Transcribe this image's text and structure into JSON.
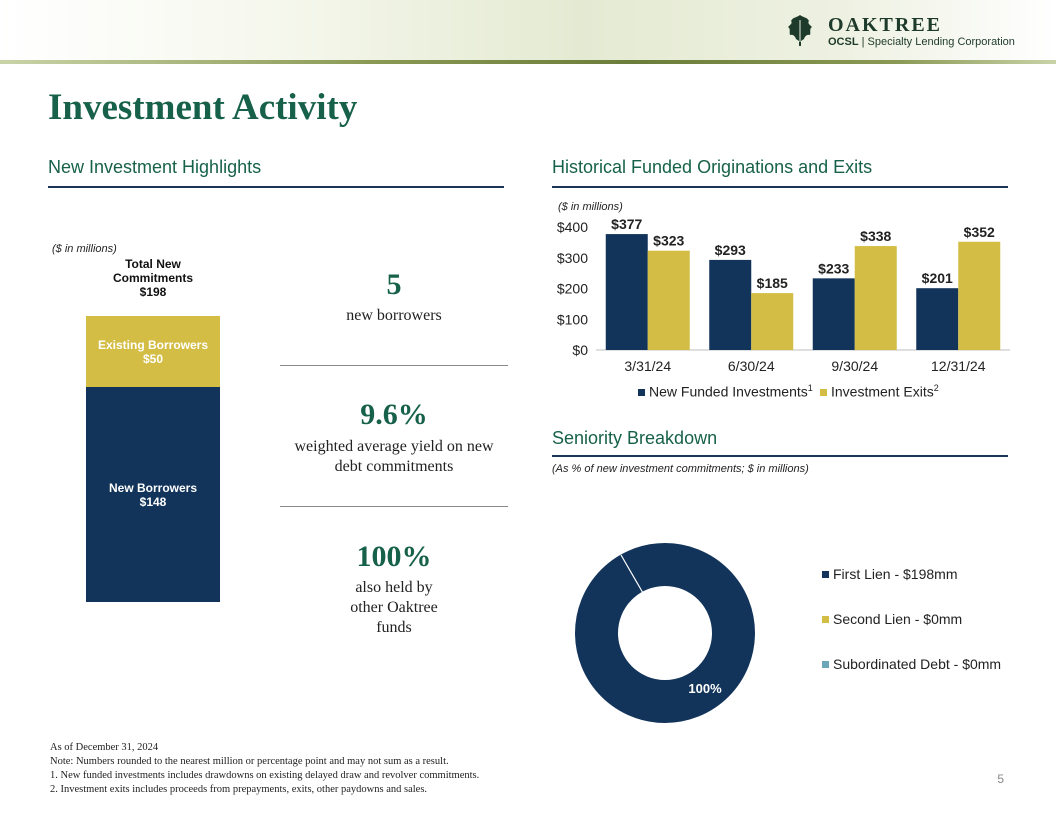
{
  "brand": {
    "name": "OAKTREE",
    "ticker": "OCSL",
    "subtitle": "Specialty Lending Corporation"
  },
  "page_title": "Investment Activity",
  "highlights": {
    "heading": "New Investment Highlights",
    "units_note": "($ in millions)",
    "total_label": "Total New Commitments",
    "total_value": "$198",
    "stack": [
      {
        "label": "Existing Borrowers",
        "value_label": "$50",
        "value": 50,
        "color": "#d4bd45"
      },
      {
        "label": "New Borrowers",
        "value_label": "$148",
        "value": 148,
        "color": "#12345a"
      }
    ],
    "stats": [
      {
        "value": "5",
        "text": "new borrowers"
      },
      {
        "value": "9.6%",
        "text": "weighted average yield on new debt commitments"
      },
      {
        "value": "100%",
        "text": "also held by other Oaktree funds"
      }
    ]
  },
  "originations": {
    "heading": "Historical Funded Originations and Exits",
    "units_note": "($ in millions)"
  },
  "seniority": {
    "heading": "Seniority Breakdown",
    "note": "(As % of new investment commitments; $ in millions)"
  },
  "chart_data": [
    {
      "type": "bar",
      "categories": [
        "3/31/24",
        "6/30/24",
        "9/30/24",
        "12/31/24"
      ],
      "series": [
        {
          "name": "New Funded Investments",
          "footnote": "1",
          "values": [
            377,
            293,
            233,
            201
          ],
          "color": "#12345a"
        },
        {
          "name": "Investment Exits",
          "footnote": "2",
          "values": [
            323,
            185,
            338,
            352
          ],
          "color": "#d4bd45"
        }
      ],
      "data_labels": [
        [
          "$377",
          "$293",
          "$233",
          "$201"
        ],
        [
          "$323",
          "$185",
          "$338",
          "$352"
        ]
      ],
      "y_ticks": [
        "$0",
        "$100",
        "$200",
        "$300",
        "$400"
      ],
      "ylim": [
        0,
        400
      ],
      "grid": false,
      "legend": "bottom"
    },
    {
      "type": "pie",
      "style": "donut",
      "slices": [
        {
          "name": "First Lien - $198mm",
          "value": 100,
          "color": "#12345a"
        },
        {
          "name": "Second Lien - $0mm",
          "value": 0,
          "color": "#d4bd45"
        },
        {
          "name": "Subordinated Debt - $0mm",
          "value": 0,
          "color": "#6aa7b8"
        }
      ],
      "data_label": "100%",
      "legend": "right"
    }
  ],
  "footer": {
    "as_of": "As of December 31, 2024",
    "note": "Note: Numbers rounded to the nearest million or percentage point and may not sum as a result.",
    "footnotes": [
      "1.   New funded investments includes drawdowns on existing delayed draw and revolver commitments.",
      "2.   Investment exits includes proceeds from prepayments, exits, other paydowns and sales."
    ]
  },
  "page_number": "5"
}
